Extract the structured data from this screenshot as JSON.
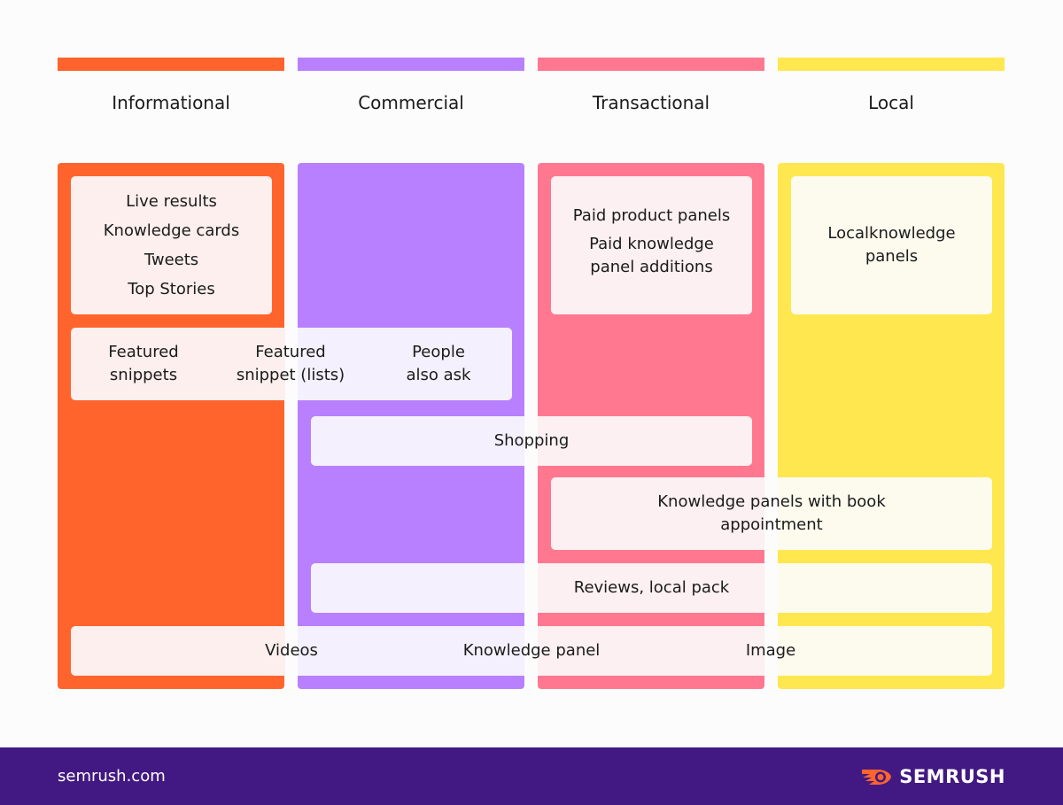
{
  "colors": {
    "informational": "#ff642d",
    "commercial": "#b880ff",
    "transactional": "#ff7890",
    "local": "#ffe74f",
    "footer": "#421983"
  },
  "columns": [
    {
      "name": "Informational"
    },
    {
      "name": "Commercial"
    },
    {
      "name": "Transactional"
    },
    {
      "name": "Local"
    }
  ],
  "boxes": {
    "informational_top": [
      "Live results",
      "Knowledge cards",
      "Tweets",
      "Top Stories"
    ],
    "featured_snippets": "Featured snippets",
    "featured_snippet_lists": "Featured snippet (lists)",
    "people_also_ask": "People also ask",
    "transactional_top": [
      "Paid product panels",
      "Paid knowledge panel additions"
    ],
    "local_top": "Localknowledge panels",
    "shopping": "Shopping",
    "knowledge_panels_book": "Knowledge panels with book appointment",
    "reviews_local_pack": "Reviews, local pack",
    "videos": "Videos",
    "knowledge_panel": "Knowledge panel",
    "image": "Image"
  },
  "footer": {
    "site": "semrush.com",
    "brand": "SEMRUSH",
    "logo_icon": "semrush-fireball-icon"
  }
}
